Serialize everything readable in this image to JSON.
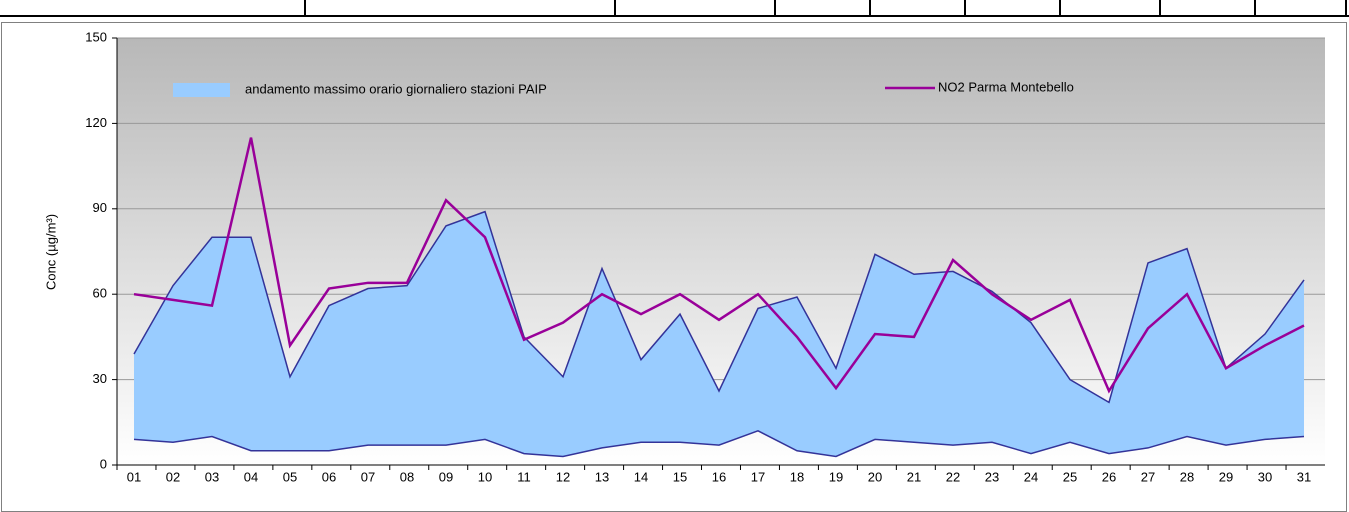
{
  "chart_data": {
    "type": "line",
    "y_label": "Conc (µg/m³)",
    "categories": [
      "01",
      "02",
      "03",
      "04",
      "05",
      "06",
      "07",
      "08",
      "09",
      "10",
      "11",
      "12",
      "13",
      "14",
      "15",
      "16",
      "17",
      "18",
      "19",
      "20",
      "21",
      "22",
      "23",
      "24",
      "25",
      "26",
      "27",
      "28",
      "29",
      "30",
      "31"
    ],
    "series": [
      {
        "name": "andamento massimo orario giornaliero stazioni PAIP",
        "type": "band",
        "color": "#99ccff",
        "edge_color": "#333399",
        "values": [
          39,
          63,
          80,
          80,
          31,
          56,
          62,
          63,
          84,
          89,
          45,
          31,
          69,
          37,
          53,
          26,
          55,
          59,
          34,
          74,
          67,
          68,
          61,
          50,
          30,
          22,
          71,
          76,
          34,
          46,
          65
        ],
        "lower": [
          9,
          8,
          10,
          5,
          5,
          5,
          7,
          7,
          7,
          9,
          4,
          3,
          6,
          8,
          8,
          7,
          12,
          5,
          3,
          9,
          8,
          7,
          8,
          4,
          8,
          4,
          6,
          10,
          7,
          9,
          10
        ]
      },
      {
        "name": "NO2 Parma Montebello",
        "type": "line",
        "color": "#990099",
        "values": [
          60,
          58,
          56,
          115,
          42,
          62,
          64,
          64,
          93,
          80,
          44,
          50,
          60,
          53,
          60,
          51,
          60,
          45,
          27,
          46,
          45,
          72,
          60,
          51,
          58,
          26,
          48,
          60,
          34,
          42,
          49
        ]
      }
    ],
    "ylim": [
      0,
      150
    ],
    "yticks": [
      0,
      30,
      60,
      90,
      120,
      150
    ],
    "grid": true
  }
}
